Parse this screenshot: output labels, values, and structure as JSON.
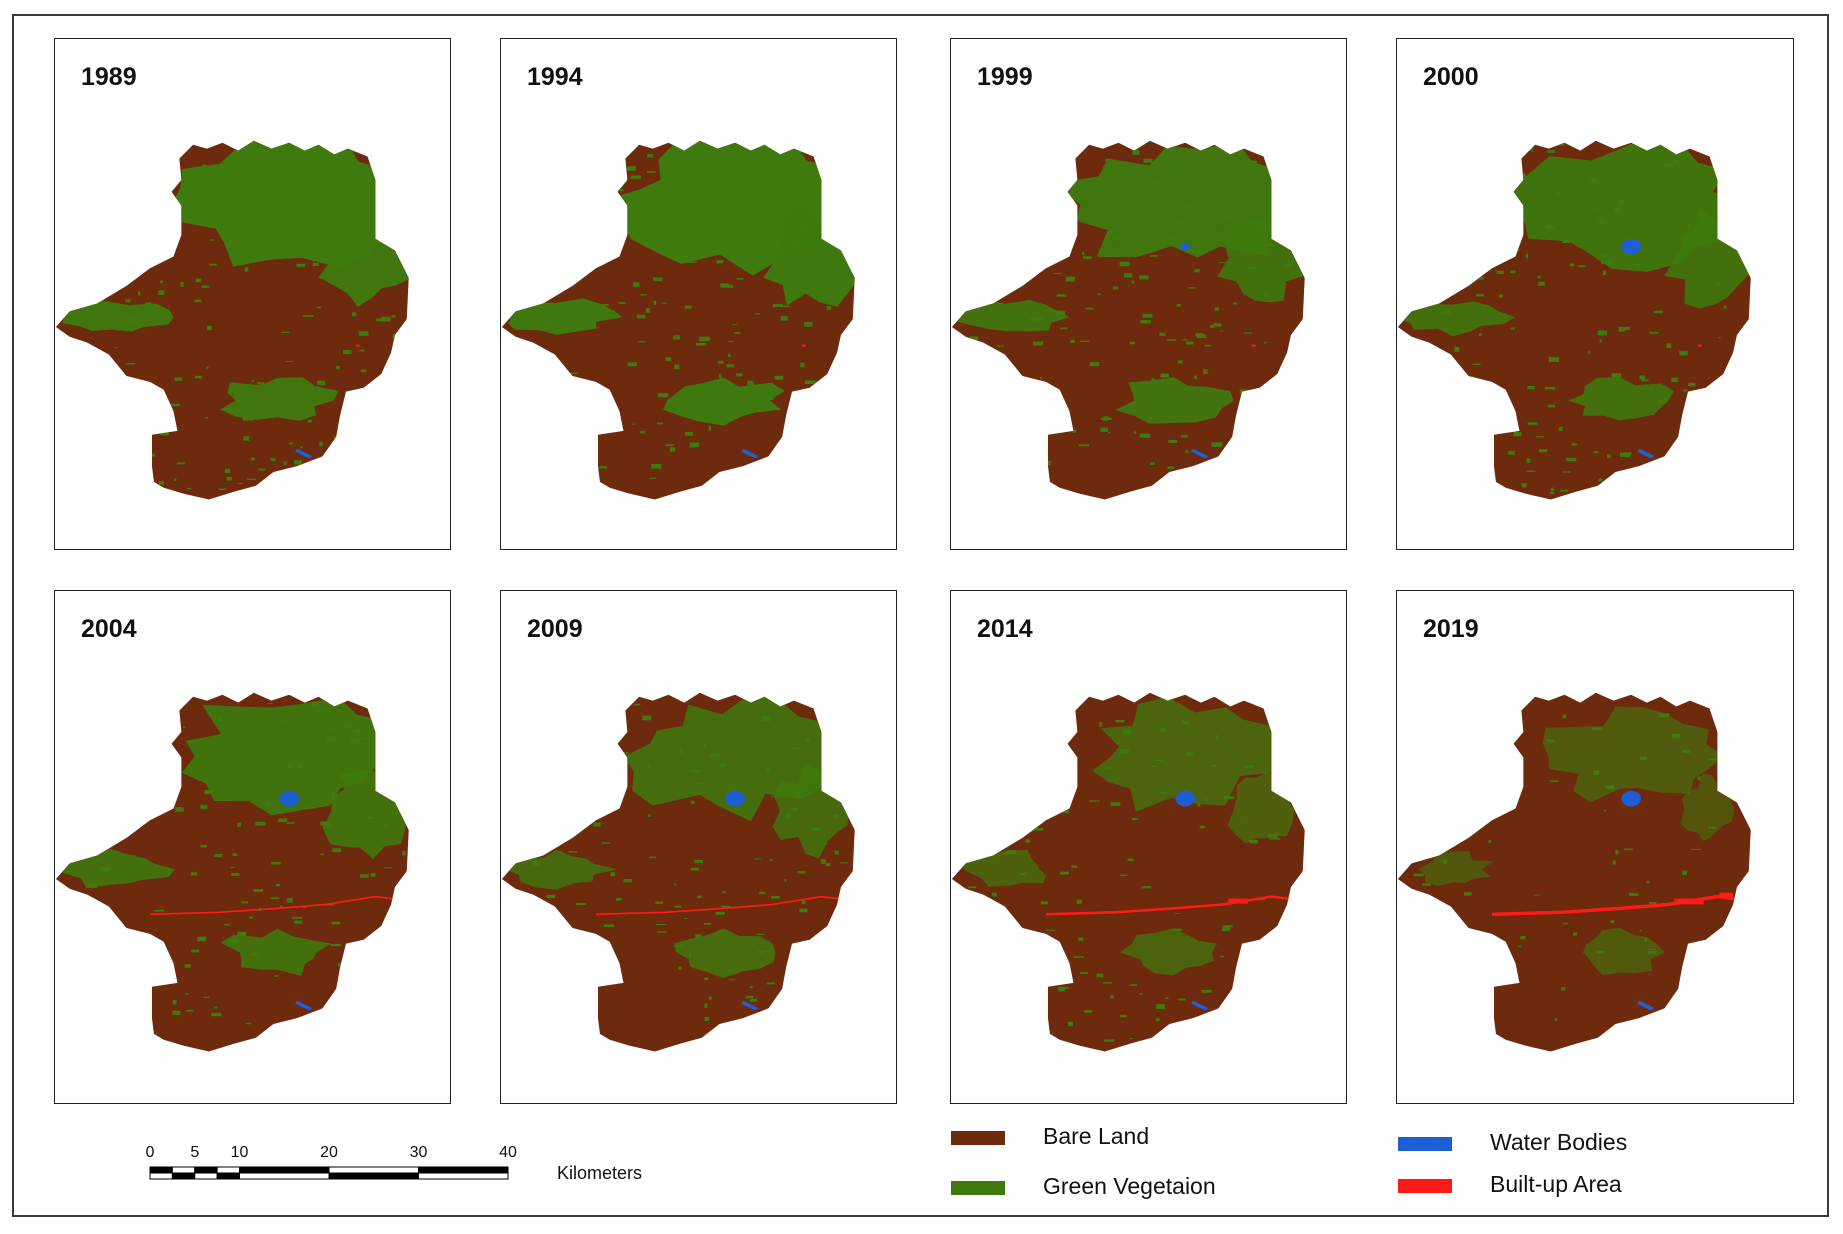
{
  "colors": {
    "bare_land": "#6d2a0c",
    "green_vegetation": "#3e7a0e",
    "water_bodies": "#1f5fd6",
    "built_up_area": "#ff1a1a"
  },
  "maps": [
    {
      "year": "1989",
      "green_fraction": 0.46,
      "reservoir": "none",
      "built_up": "minimal"
    },
    {
      "year": "1994",
      "green_fraction": 0.48,
      "reservoir": "none",
      "built_up": "minimal"
    },
    {
      "year": "1999",
      "green_fraction": 0.42,
      "reservoir": "small",
      "built_up": "minimal"
    },
    {
      "year": "2000",
      "green_fraction": 0.4,
      "reservoir": "medium",
      "built_up": "minimal"
    },
    {
      "year": "2004",
      "green_fraction": 0.4,
      "reservoir": "medium",
      "built_up": "low"
    },
    {
      "year": "2009",
      "green_fraction": 0.34,
      "reservoir": "medium",
      "built_up": "low"
    },
    {
      "year": "2014",
      "green_fraction": 0.26,
      "reservoir": "medium",
      "built_up": "moderate"
    },
    {
      "year": "2019",
      "green_fraction": 0.16,
      "reservoir": "medium",
      "built_up": "high"
    }
  ],
  "scale": {
    "ticks": [
      "0",
      "5",
      "10",
      "20",
      "30",
      "40"
    ],
    "unit": "Kilometers"
  },
  "legend": [
    {
      "label": "Bare Land",
      "color_key": "bare_land"
    },
    {
      "label": "Green Vegetaion",
      "color_key": "green_vegetation"
    },
    {
      "label": "Water Bodies",
      "color_key": "water_bodies"
    },
    {
      "label": "Built-up Area",
      "color_key": "built_up_area"
    }
  ]
}
